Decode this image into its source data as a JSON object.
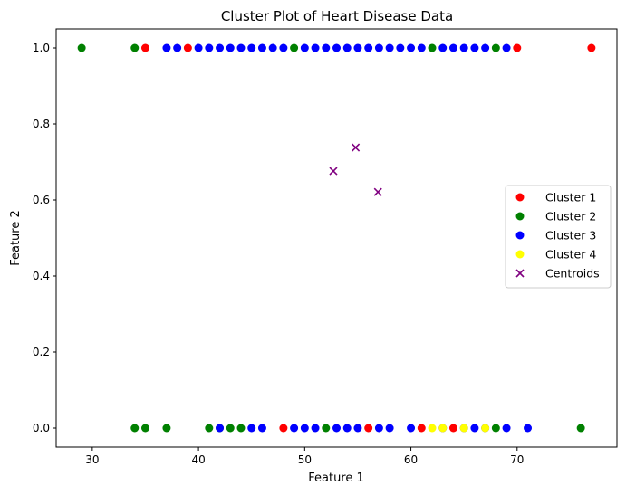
{
  "chart_data": {
    "type": "scatter",
    "title": "Cluster Plot of Heart Disease Data",
    "xlabel": "Feature 1",
    "ylabel": "Feature 2",
    "xlim": [
      26.6,
      79.4
    ],
    "ylim": [
      -0.05,
      1.05
    ],
    "xticks": [
      30,
      40,
      50,
      60,
      70
    ],
    "yticks": [
      0.0,
      0.2,
      0.4,
      0.6,
      0.8,
      1.0
    ],
    "ytick_labels": [
      "0.0",
      "0.2",
      "0.4",
      "0.6",
      "0.8",
      "1.0"
    ],
    "grid": false,
    "legend_position": "center-right",
    "series": [
      {
        "name": "Cluster 1",
        "color": "#ff0000",
        "marker": "circle",
        "points": [
          [
            35,
            1
          ],
          [
            39,
            1
          ],
          [
            70,
            1
          ],
          [
            77,
            1
          ],
          [
            48,
            0
          ],
          [
            56,
            0
          ],
          [
            61,
            0
          ],
          [
            64,
            0
          ]
        ]
      },
      {
        "name": "Cluster 2",
        "color": "#008000",
        "marker": "circle",
        "points": [
          [
            29,
            1
          ],
          [
            34,
            1
          ],
          [
            49,
            1
          ],
          [
            62,
            1
          ],
          [
            68,
            1
          ],
          [
            34,
            0
          ],
          [
            35,
            0
          ],
          [
            37,
            0
          ],
          [
            41,
            0
          ],
          [
            42,
            0
          ],
          [
            43,
            0
          ],
          [
            44,
            0
          ],
          [
            52,
            0
          ],
          [
            68,
            0
          ],
          [
            76,
            0
          ]
        ]
      },
      {
        "name": "Cluster 3",
        "color": "#0000ff",
        "marker": "circle",
        "points": [
          [
            37,
            1
          ],
          [
            38,
            1
          ],
          [
            40,
            1
          ],
          [
            41,
            1
          ],
          [
            42,
            1
          ],
          [
            43,
            1
          ],
          [
            44,
            1
          ],
          [
            45,
            1
          ],
          [
            46,
            1
          ],
          [
            47,
            1
          ],
          [
            48,
            1
          ],
          [
            50,
            1
          ],
          [
            51,
            1
          ],
          [
            52,
            1
          ],
          [
            53,
            1
          ],
          [
            54,
            1
          ],
          [
            55,
            1
          ],
          [
            56,
            1
          ],
          [
            57,
            1
          ],
          [
            58,
            1
          ],
          [
            59,
            1
          ],
          [
            60,
            1
          ],
          [
            61,
            1
          ],
          [
            63,
            1
          ],
          [
            64,
            1
          ],
          [
            65,
            1
          ],
          [
            66,
            1
          ],
          [
            67,
            1
          ],
          [
            69,
            1
          ],
          [
            42,
            0
          ],
          [
            45,
            0
          ],
          [
            46,
            0
          ],
          [
            49,
            0
          ],
          [
            50,
            0
          ],
          [
            51,
            0
          ],
          [
            53,
            0
          ],
          [
            54,
            0
          ],
          [
            55,
            0
          ],
          [
            57,
            0
          ],
          [
            58,
            0
          ],
          [
            60,
            0
          ],
          [
            63,
            0
          ],
          [
            65,
            0
          ],
          [
            66,
            0
          ],
          [
            67,
            0
          ],
          [
            69,
            0
          ],
          [
            71,
            0
          ]
        ]
      },
      {
        "name": "Cluster 4",
        "color": "#ffff00",
        "marker": "circle",
        "points": [
          [
            62,
            0
          ],
          [
            63,
            0
          ],
          [
            65,
            0
          ],
          [
            67,
            0
          ]
        ]
      },
      {
        "name": "Centroids",
        "color": "#800080",
        "marker": "x",
        "points": [
          [
            52.7,
            0.676
          ],
          [
            54.8,
            0.738
          ],
          [
            56.9,
            0.621
          ]
        ]
      }
    ]
  }
}
